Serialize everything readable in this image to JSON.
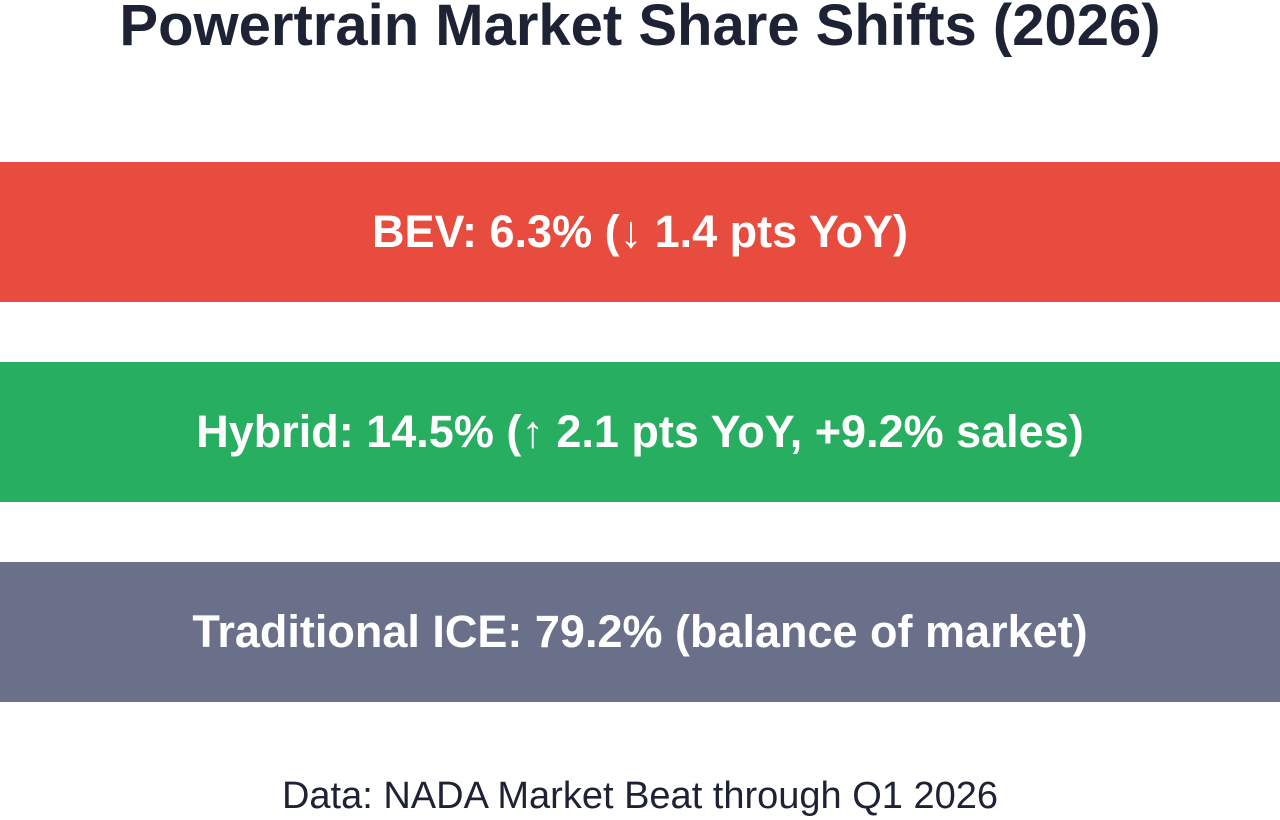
{
  "title": "Powertrain Market Share Shifts (2026)",
  "bands": [
    {
      "label": "BEV: 6.3% (↓ 1.4 pts YoY)",
      "color": "#e84c3e"
    },
    {
      "label": "Hybrid: 14.5% (↑ 2.1 pts YoY, +9.2% sales)",
      "color": "#27ae60"
    },
    {
      "label": "Traditional ICE: 79.2% (balance of market)",
      "color": "#6a7089"
    }
  ],
  "footer": "Data: NADA Market Beat through Q1 2026"
}
